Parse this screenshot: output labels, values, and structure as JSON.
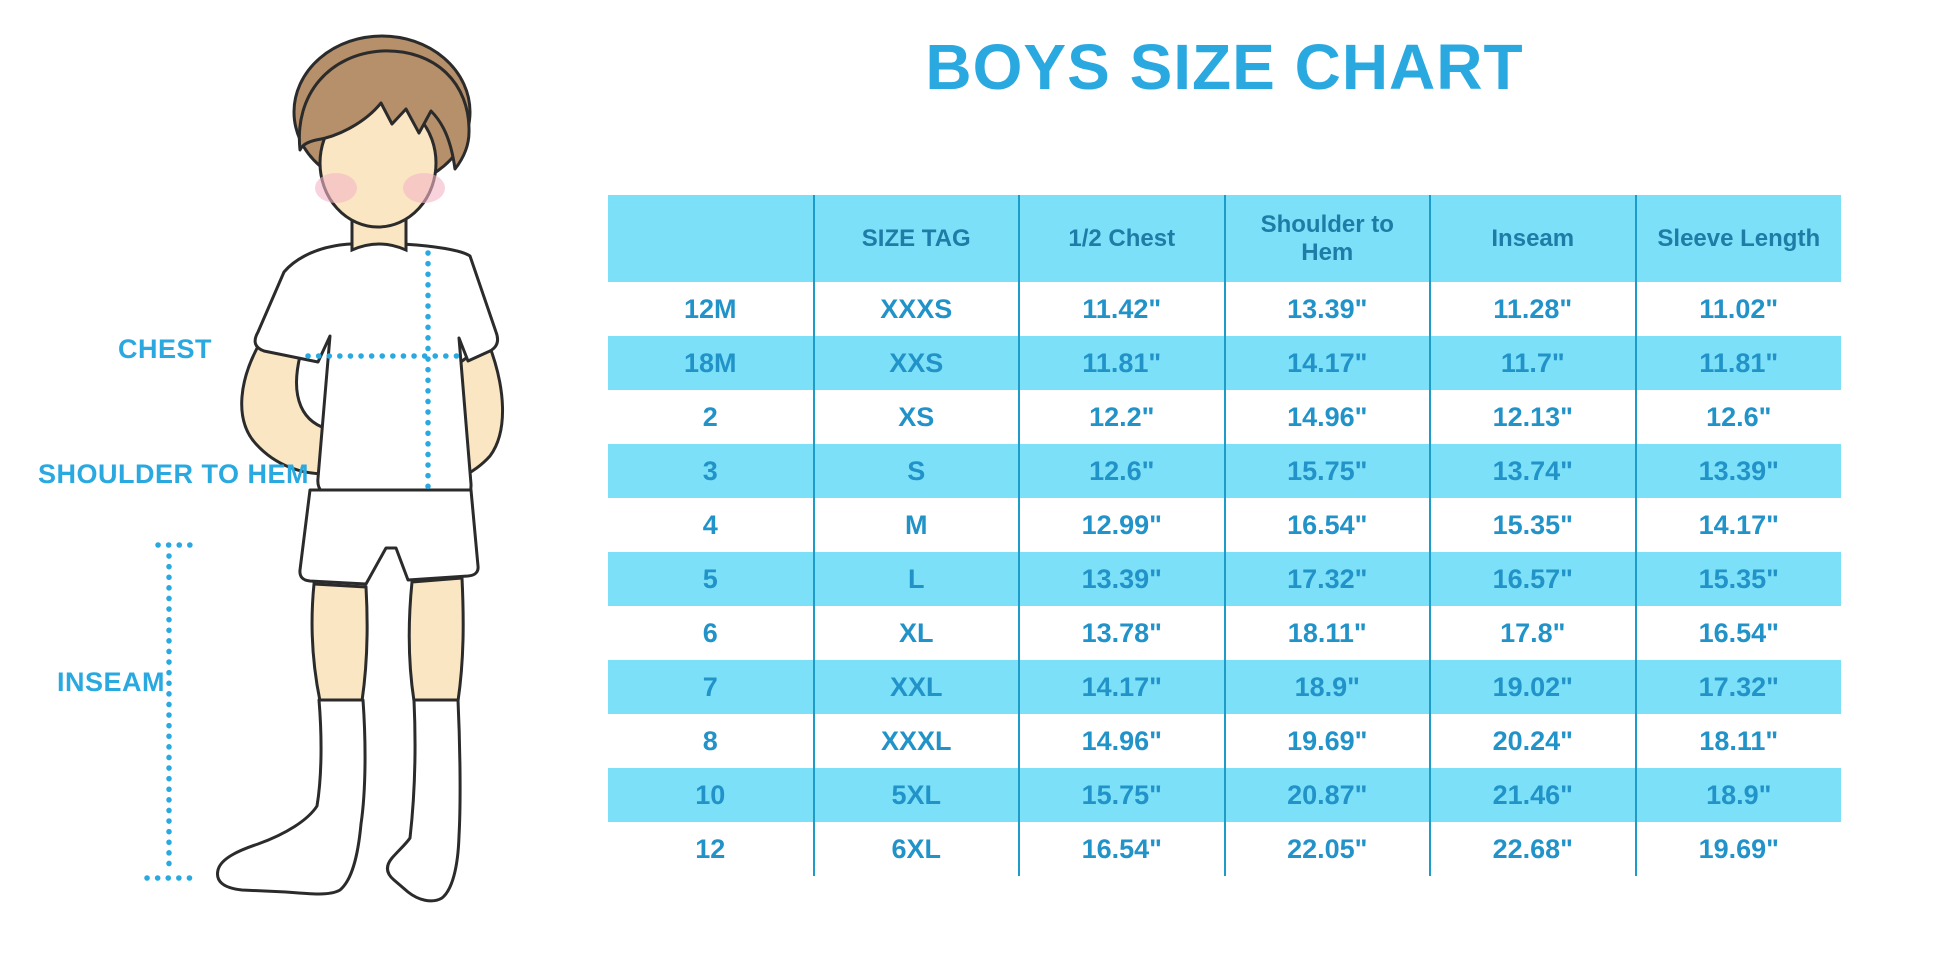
{
  "title": "BOYS SIZE CHART",
  "figure": {
    "description": "boy-illustration-with-measurement-lines",
    "labels": {
      "chest": "CHEST",
      "shoulder_to_hem": "SHOULDER TO HEM",
      "inseam": "INSEAM"
    }
  },
  "colors": {
    "accent_blue": "#29a9e0",
    "table_fill": "#7ce0f9",
    "table_line": "#1e9cc9",
    "header_text": "#1e7ca6",
    "cell_text": "#2193c9",
    "hair": "#b5906b",
    "skin": "#fae6c3"
  },
  "table": {
    "columns": [
      "",
      "SIZE TAG",
      "1/2 Chest",
      "Shoulder to Hem",
      "Inseam",
      "Sleeve Length"
    ],
    "rows": [
      [
        "12M",
        "XXXS",
        "11.42\"",
        "13.39\"",
        "11.28\"",
        "11.02\""
      ],
      [
        "18M",
        "XXS",
        "11.81\"",
        "14.17\"",
        "11.7\"",
        "11.81\""
      ],
      [
        "2",
        "XS",
        "12.2\"",
        "14.96\"",
        "12.13\"",
        "12.6\""
      ],
      [
        "3",
        "S",
        "12.6\"",
        "15.75\"",
        "13.74\"",
        "13.39\""
      ],
      [
        "4",
        "M",
        "12.99\"",
        "16.54\"",
        "15.35\"",
        "14.17\""
      ],
      [
        "5",
        "L",
        "13.39\"",
        "17.32\"",
        "16.57\"",
        "15.35\""
      ],
      [
        "6",
        "XL",
        "13.78\"",
        "18.11\"",
        "17.8\"",
        "16.54\""
      ],
      [
        "7",
        "XXL",
        "14.17\"",
        "18.9\"",
        "19.02\"",
        "17.32\""
      ],
      [
        "8",
        "XXXL",
        "14.96\"",
        "19.69\"",
        "20.24\"",
        "18.11\""
      ],
      [
        "10",
        "5XL",
        "15.75\"",
        "20.87\"",
        "21.46\"",
        "18.9\""
      ],
      [
        "12",
        "6XL",
        "16.54\"",
        "22.05\"",
        "22.68\"",
        "19.69\""
      ]
    ]
  }
}
